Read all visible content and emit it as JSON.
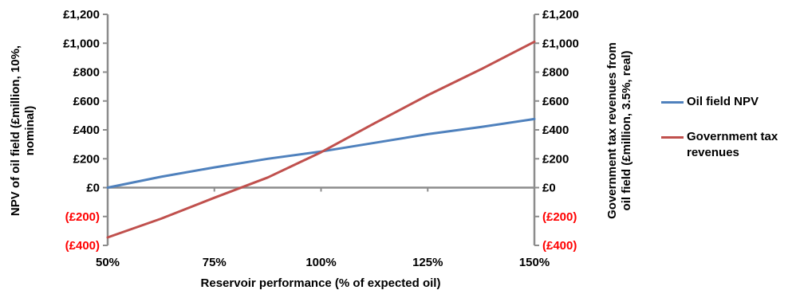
{
  "chart_data": {
    "type": "line",
    "xlabel": "Reservoir performance (% of expected oil)",
    "x_tick_labels": [
      "50%",
      "75%",
      "100%",
      "125%",
      "150%"
    ],
    "xlim": [
      50,
      150
    ],
    "ylabel_left": "NPV of oil field (£million, 10%, nominal)",
    "ylabel_right": "Government tax revenues from oil field (£million, 3.5%, real)",
    "ylim": [
      -400,
      1200
    ],
    "y_tick_values": [
      1200,
      1000,
      800,
      600,
      400,
      200,
      0,
      -200,
      -400
    ],
    "y_tick_labels": [
      "£1,200",
      "£1,000",
      "£800",
      "£600",
      "£400",
      "£200",
      "£0",
      "(£200)",
      "(£400)"
    ],
    "negative_tick_color": "#ff0000",
    "series": [
      {
        "name": "Oil field NPV",
        "color": "#4f81bd",
        "axis": "left",
        "x": [
          50,
          62.5,
          75,
          87.5,
          100,
          112.5,
          125,
          137.5,
          150
        ],
        "y": [
          0,
          75,
          140,
          200,
          250,
          310,
          370,
          420,
          475
        ]
      },
      {
        "name": "Government tax revenues",
        "color": "#c0504d",
        "axis": "right",
        "x": [
          50,
          62.5,
          75,
          87.5,
          100,
          112.5,
          125,
          137.5,
          150
        ],
        "y": [
          -345,
          -215,
          -70,
          70,
          245,
          445,
          640,
          820,
          1010
        ]
      }
    ],
    "legend_position": "right",
    "grid": false
  },
  "legend": {
    "items": [
      {
        "label": "Oil field NPV",
        "color": "#4f81bd"
      },
      {
        "label": "Government tax revenues",
        "color": "#c0504d"
      }
    ]
  }
}
